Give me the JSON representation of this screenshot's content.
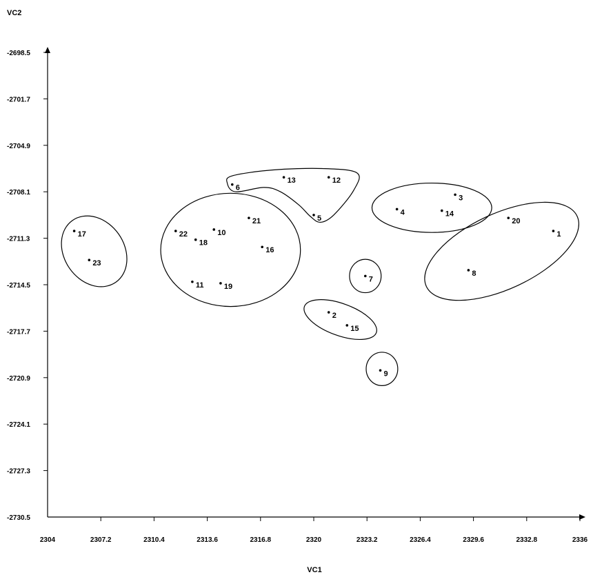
{
  "chart_data": {
    "type": "scatter",
    "xlabel": "VC1",
    "ylabel": "VC2",
    "xlim": [
      2304,
      2336
    ],
    "ylim": [
      -2730.5,
      -2698.5
    ],
    "x_ticks": [
      "2304",
      "2307.2",
      "2310.4",
      "2313.6",
      "2316.8",
      "2320",
      "2323.2",
      "2326.4",
      "2329.6",
      "2332.8",
      "2336"
    ],
    "y_ticks": [
      "-2698.5",
      "-2701.7",
      "-2704.9",
      "-2708.1",
      "-2711.3",
      "-2714.5",
      "-2717.7",
      "-2720.9",
      "-2724.1",
      "-2727.3",
      "-2730.5"
    ],
    "points": [
      {
        "label": "1",
        "x": 2334.4,
        "y": -2710.8
      },
      {
        "label": "2",
        "x": 2320.9,
        "y": -2716.4
      },
      {
        "label": "3",
        "x": 2328.5,
        "y": -2708.3
      },
      {
        "label": "4",
        "x": 2325.0,
        "y": -2709.3
      },
      {
        "label": "5",
        "x": 2320.0,
        "y": -2709.7
      },
      {
        "label": "6",
        "x": 2315.1,
        "y": -2707.6
      },
      {
        "label": "7",
        "x": 2323.1,
        "y": -2713.9
      },
      {
        "label": "8",
        "x": 2329.3,
        "y": -2713.5
      },
      {
        "label": "9",
        "x": 2324.0,
        "y": -2720.4
      },
      {
        "label": "10",
        "x": 2314.0,
        "y": -2710.7
      },
      {
        "label": "11",
        "x": 2312.7,
        "y": -2714.3
      },
      {
        "label": "12",
        "x": 2320.9,
        "y": -2707.1
      },
      {
        "label": "13",
        "x": 2318.2,
        "y": -2707.1
      },
      {
        "label": "14",
        "x": 2327.7,
        "y": -2709.4
      },
      {
        "label": "15",
        "x": 2322.0,
        "y": -2717.3
      },
      {
        "label": "16",
        "x": 2316.9,
        "y": -2711.9
      },
      {
        "label": "17",
        "x": 2305.6,
        "y": -2710.8
      },
      {
        "label": "18",
        "x": 2312.9,
        "y": -2711.4
      },
      {
        "label": "19",
        "x": 2314.4,
        "y": -2714.4
      },
      {
        "label": "20",
        "x": 2331.7,
        "y": -2709.9
      },
      {
        "label": "21",
        "x": 2316.1,
        "y": -2709.9
      },
      {
        "label": "22",
        "x": 2311.7,
        "y": -2710.8
      },
      {
        "label": "23",
        "x": 2306.5,
        "y": -2712.8
      }
    ],
    "clusters": [
      {
        "shape": "ellipse",
        "cx": 2306.8,
        "cy": -2712.2,
        "rx": 1.8,
        "ry": 2.6,
        "rotate": -35
      },
      {
        "shape": "ellipse",
        "cx": 2315.0,
        "cy": -2712.1,
        "rx": 4.2,
        "ry": 3.9,
        "rotate": 0
      },
      {
        "shape": "blob",
        "path": [
          [
            2315.1,
            -2707.0
          ],
          [
            2317.5,
            -2706.6
          ],
          [
            2320.5,
            -2706.5
          ],
          [
            2322.6,
            -2706.8
          ],
          [
            2322.4,
            -2708.0
          ],
          [
            2321.2,
            -2709.7
          ],
          [
            2320.4,
            -2710.2
          ],
          [
            2319.8,
            -2709.8
          ],
          [
            2319.1,
            -2709.0
          ],
          [
            2318.0,
            -2708.1
          ],
          [
            2317.0,
            -2707.8
          ],
          [
            2315.3,
            -2708.1
          ],
          [
            2314.8,
            -2707.5
          ]
        ]
      },
      {
        "shape": "ellipse",
        "cx": 2323.1,
        "cy": -2713.9,
        "rx": 0.95,
        "ry": 1.15,
        "rotate": 0
      },
      {
        "shape": "ellipse",
        "cx": 2321.6,
        "cy": -2716.9,
        "rx": 2.3,
        "ry": 1.1,
        "rotate": 20
      },
      {
        "shape": "ellipse",
        "cx": 2324.1,
        "cy": -2720.3,
        "rx": 0.95,
        "ry": 1.15,
        "rotate": 0
      },
      {
        "shape": "ellipse",
        "cx": 2327.1,
        "cy": -2709.2,
        "rx": 3.6,
        "ry": 1.7,
        "rotate": 0
      },
      {
        "shape": "ellipse",
        "cx": 2331.3,
        "cy": -2712.2,
        "rx": 5.0,
        "ry": 2.6,
        "rotate": -25
      }
    ]
  }
}
